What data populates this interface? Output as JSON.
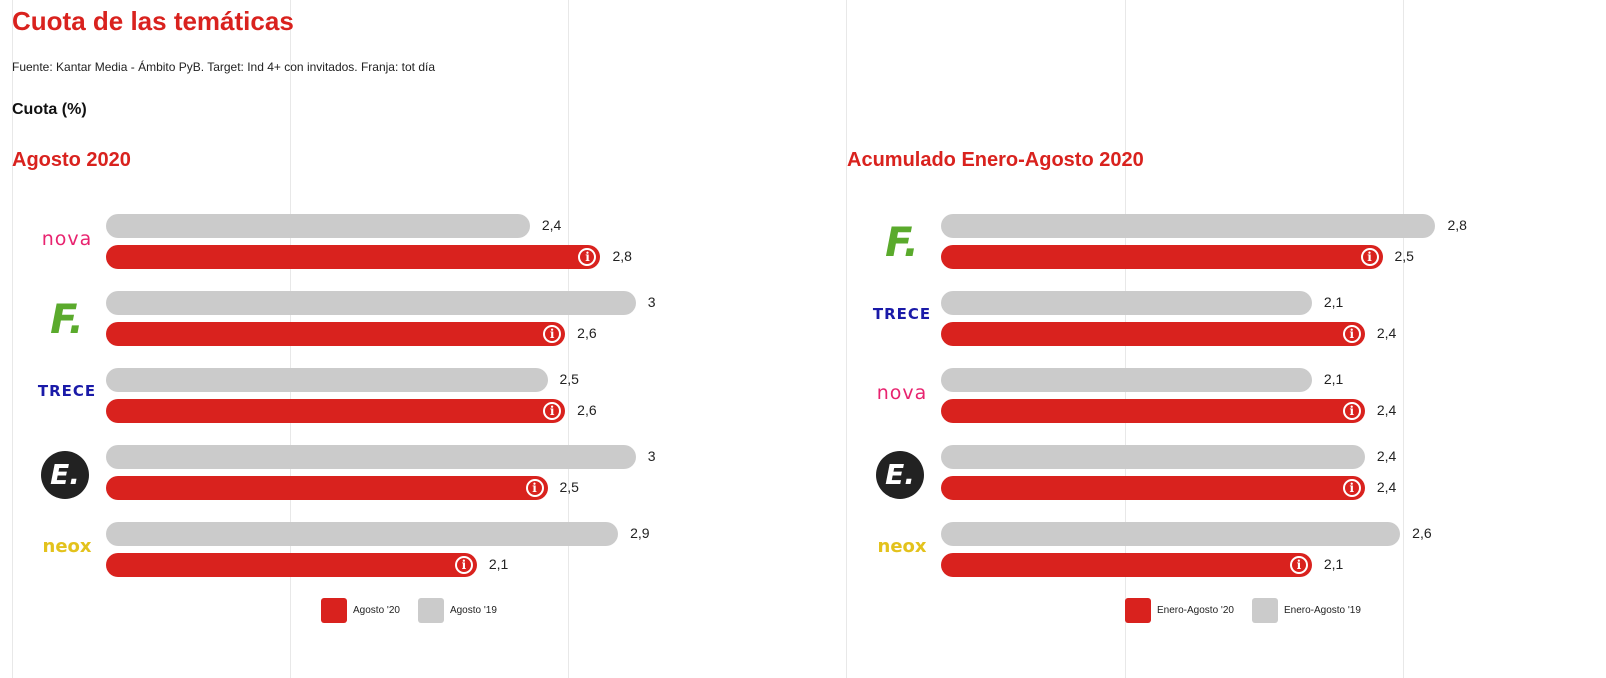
{
  "header": {
    "title": "Cuota de las temáticas",
    "source": "Fuente: Kantar Media - Ámbito PyB. Target: Ind 4+ con invitados. Franja: tot día",
    "unit": "Cuota (%)"
  },
  "colors": {
    "current": "#d9221e",
    "previous": "#cbcbcb"
  },
  "chart_data": [
    {
      "type": "bar",
      "title": "Agosto 2020",
      "orientation": "horizontal",
      "xlim": [
        0,
        3
      ],
      "categories": [
        "nova",
        "fdf",
        "trece",
        "energy",
        "neox"
      ],
      "logos": [
        "nova",
        "F.",
        "TRECE",
        "E.",
        "neox"
      ],
      "series": [
        {
          "name": "Agosto '19",
          "values": [
            2.4,
            3,
            2.5,
            3,
            2.9
          ],
          "labels": [
            "2,4",
            "3",
            "2,5",
            "3",
            "2,9"
          ]
        },
        {
          "name": "Agosto '20",
          "values": [
            2.8,
            2.6,
            2.6,
            2.5,
            2.1
          ],
          "labels": [
            "2,8",
            "2,6",
            "2,6",
            "2,5",
            "2,1"
          ]
        }
      ],
      "legend": [
        "Agosto '20",
        "Agosto '19"
      ]
    },
    {
      "type": "bar",
      "title": "Acumulado Enero-Agosto 2020",
      "orientation": "horizontal",
      "xlim": [
        0,
        3
      ],
      "categories": [
        "fdf",
        "trece",
        "nova",
        "energy",
        "neox"
      ],
      "logos": [
        "F.",
        "TRECE",
        "nova",
        "E.",
        "neox"
      ],
      "series": [
        {
          "name": "Enero-Agosto '19",
          "values": [
            2.8,
            2.1,
            2.1,
            2.4,
            2.6
          ],
          "labels": [
            "2,8",
            "2,1",
            "2,1",
            "2,4",
            "2,6"
          ]
        },
        {
          "name": "Enero-Agosto '20",
          "values": [
            2.5,
            2.4,
            2.4,
            2.4,
            2.1
          ],
          "labels": [
            "2,5",
            "2,4",
            "2,4",
            "2,4",
            "2,1"
          ]
        }
      ],
      "legend": [
        "Enero-Agosto '20",
        "Enero-Agosto '19"
      ]
    }
  ]
}
